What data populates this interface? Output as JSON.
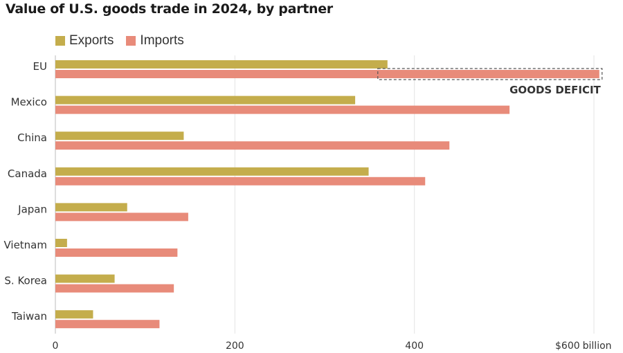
{
  "chart_data": {
    "type": "bar",
    "orientation": "horizontal",
    "title": "Value of U.S. goods trade in 2024, by partner",
    "categories": [
      "EU",
      "Mexico",
      "China",
      "Canada",
      "Japan",
      "Vietnam",
      "S. Korea",
      "Taiwan"
    ],
    "series": [
      {
        "name": "Exports",
        "color": "#c4ad4c",
        "values": [
          370,
          334,
          143,
          349,
          80,
          13,
          66,
          42
        ]
      },
      {
        "name": "Imports",
        "color": "#e88b7a",
        "values": [
          606,
          506,
          439,
          412,
          148,
          136,
          132,
          116
        ]
      }
    ],
    "x_ticks": [
      "0",
      "200",
      "400",
      "$600"
    ],
    "x_tick_values": [
      0,
      200,
      400,
      600
    ],
    "x_unit": "billion",
    "xlim": [
      0,
      600
    ],
    "grid": true,
    "legend_position": "top-left",
    "annotation": {
      "text": "GOODS DEFICIT",
      "category": "EU",
      "from": 370,
      "to": 606
    }
  }
}
